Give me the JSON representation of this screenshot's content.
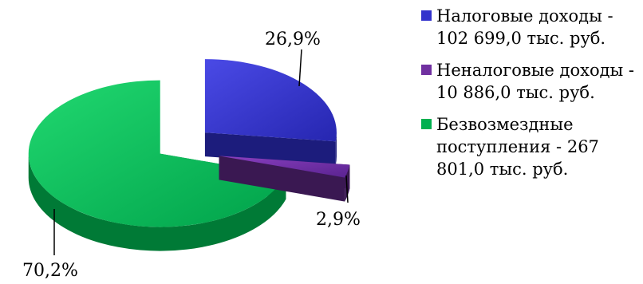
{
  "chart_data": {
    "type": "pie",
    "title": "",
    "legend_position": "right",
    "slices": [
      {
        "name": "Налоговые доходы - 102 699,0 тыс. руб.",
        "value": 102699.0,
        "label": "26,9%",
        "color": "#3333cc"
      },
      {
        "name": "Неналоговые доходы - 10 886,0 тыс. руб.",
        "value": 10886.0,
        "label": "2,9%",
        "color": "#7030a0"
      },
      {
        "name": "Безвозмездные поступления - 267 801,0 тыс. руб.",
        "value": 267801.0,
        "label": "70,2%",
        "color": "#00b050"
      }
    ]
  }
}
